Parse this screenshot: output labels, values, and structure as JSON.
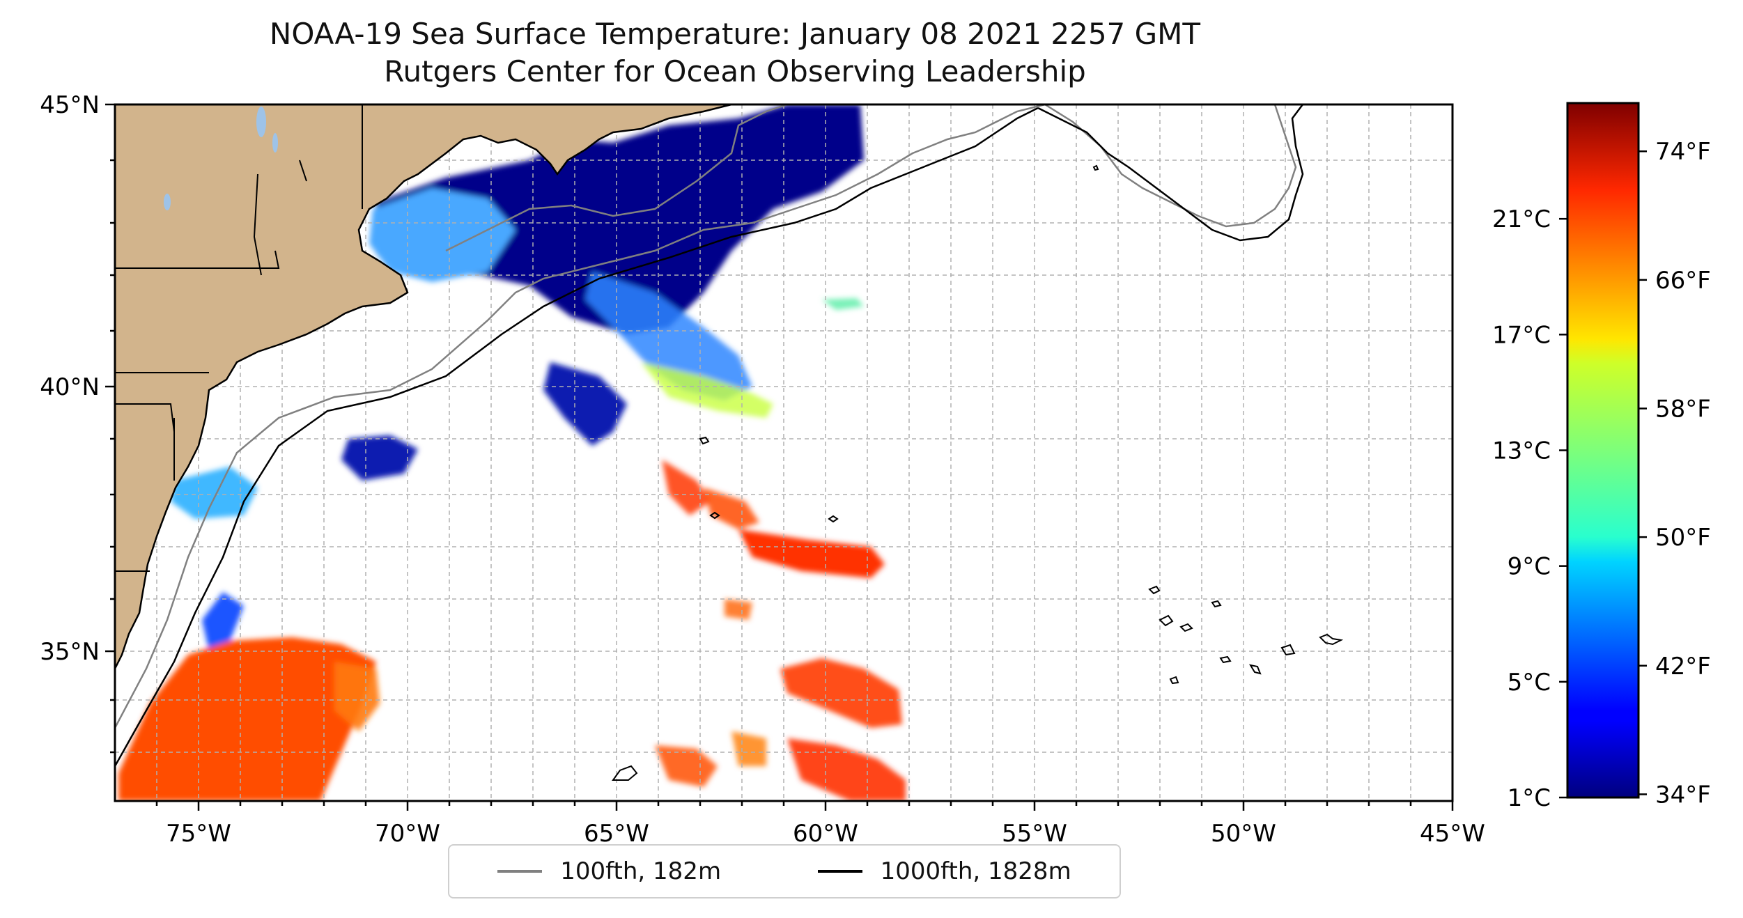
{
  "title": {
    "line1": "NOAA-19 Sea Surface Temperature: January 08 2021 2257 GMT",
    "line2": "Rutgers Center for Ocean Observing Leadership"
  },
  "map": {
    "lon_range": [
      -77,
      -45
    ],
    "lat_range": [
      32.2,
      45
    ],
    "lon_ticks": [
      {
        "value": -75,
        "label": "75°W"
      },
      {
        "value": -70,
        "label": "70°W"
      },
      {
        "value": -65,
        "label": "65°W"
      },
      {
        "value": -60,
        "label": "60°W"
      },
      {
        "value": -55,
        "label": "55°W"
      },
      {
        "value": -50,
        "label": "50°W"
      },
      {
        "value": -45,
        "label": "45°W"
      }
    ],
    "lat_ticks": [
      {
        "value": 45,
        "label": "45°N"
      },
      {
        "value": 40,
        "label": "40°N"
      },
      {
        "value": 35,
        "label": "35°N"
      }
    ],
    "gridlines": "dashed, every 1°",
    "land_color": "#d2b48c",
    "lake_color": "#9ec3e8"
  },
  "legend": {
    "placement": "bottom-center",
    "entries": [
      {
        "label": "100fth, 182m",
        "color": "#808080"
      },
      {
        "label": "1000fth, 1828m",
        "color": "#000000"
      }
    ]
  },
  "colorbar": {
    "colormap": "jet",
    "range_f": [
      33.8,
      77
    ],
    "left_labels": [
      {
        "value_f": 33.8,
        "label": "1°C"
      },
      {
        "value_f": 41,
        "label": "5°C"
      },
      {
        "value_f": 48.2,
        "label": "9°C"
      },
      {
        "value_f": 55.4,
        "label": "13°C"
      },
      {
        "value_f": 62.6,
        "label": "17°C"
      },
      {
        "value_f": 69.8,
        "label": "21°C"
      }
    ],
    "right_labels": [
      {
        "value_f": 34,
        "label": "34°F"
      },
      {
        "value_f": 42,
        "label": "42°F"
      },
      {
        "value_f": 50,
        "label": "50°F"
      },
      {
        "value_f": 58,
        "label": "58°F"
      },
      {
        "value_f": 66,
        "label": "66°F"
      },
      {
        "value_f": 74,
        "label": "74°F"
      }
    ]
  }
}
